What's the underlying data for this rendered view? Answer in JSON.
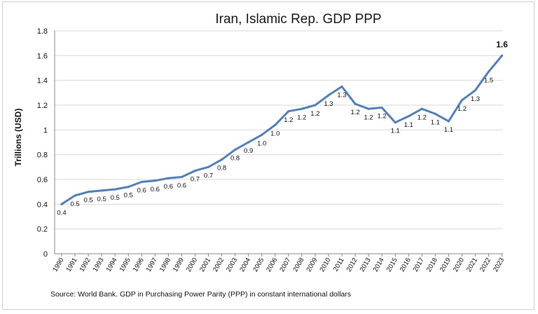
{
  "chart_data": {
    "type": "line",
    "title": "Iran, Islamic Rep. GDP PPP",
    "ylabel": "Trillions (USD)",
    "xlabel": "",
    "ylim": [
      0,
      1.8
    ],
    "yticks": [
      "0",
      "0.2",
      "0.4",
      "0.6",
      "0.8",
      "1",
      "1.2",
      "1.4",
      "1.6",
      "1.8"
    ],
    "grid": "horizontal",
    "legend": "none",
    "line_color": "#4f81bd",
    "x": [
      "1990",
      "1991",
      "1992",
      "1993",
      "1994",
      "1995",
      "1996",
      "1997",
      "1998",
      "1999",
      "2000",
      "2001",
      "2002",
      "2003",
      "2004",
      "2005",
      "2006",
      "2007",
      "2008",
      "2009",
      "2010",
      "2011",
      "2012",
      "2013",
      "2014",
      "2015",
      "2016",
      "2017",
      "2018",
      "2019",
      "2020",
      "2021",
      "2022",
      "2023"
    ],
    "series": [
      {
        "values": [
          0.4,
          0.47,
          0.5,
          0.51,
          0.52,
          0.54,
          0.58,
          0.59,
          0.61,
          0.62,
          0.67,
          0.7,
          0.76,
          0.84,
          0.9,
          0.96,
          1.04,
          1.15,
          1.17,
          1.2,
          1.28,
          1.35,
          1.21,
          1.17,
          1.18,
          1.06,
          1.11,
          1.17,
          1.13,
          1.07,
          1.24,
          1.32,
          1.47,
          1.6
        ],
        "labels": [
          "0.4",
          "0.5",
          "0.5",
          "0.5",
          "0.5",
          "0.5",
          "0.6",
          "0.6",
          "0.6",
          "0.6",
          "0.7",
          "0.7",
          "0.8",
          "0.8",
          "0.9",
          "1.0",
          "1.0",
          "1.2",
          "1.2",
          "1.2",
          "1.3",
          "1.3",
          "1.2",
          "1.2",
          "1.2",
          "1.1",
          "1.1",
          "1.2",
          "1.1",
          "1.1",
          "1.2",
          "1.3",
          "1.5",
          "1.6"
        ]
      }
    ],
    "source": "Source:  World Bank.  GDP  in  Purchasing Power Parity (PPP)  in constant international dollars"
  }
}
